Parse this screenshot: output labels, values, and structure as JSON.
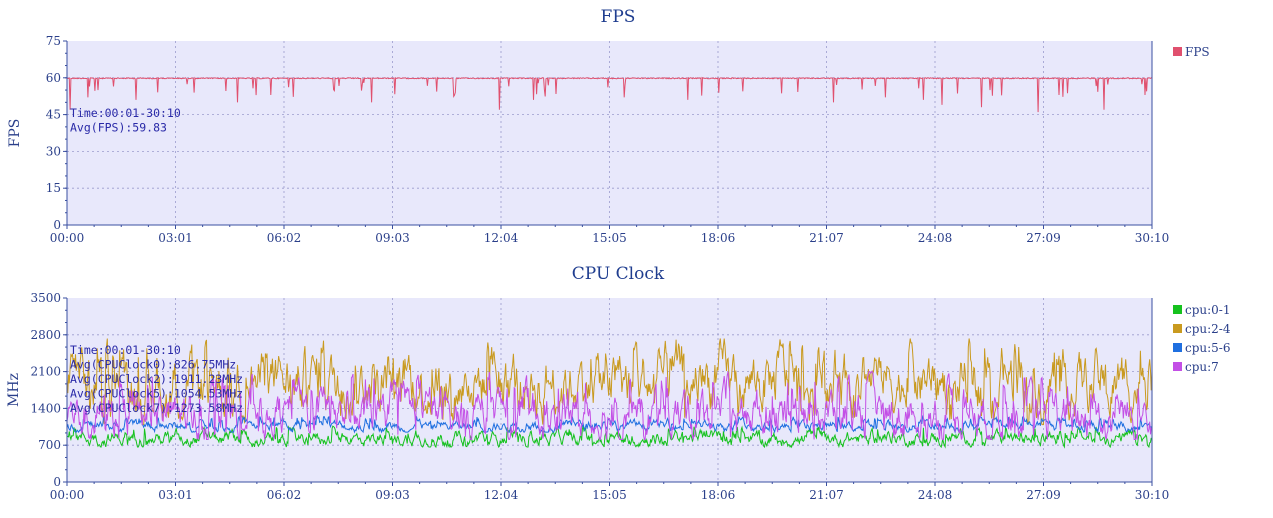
{
  "chart_data": [
    {
      "type": "line",
      "title": "FPS",
      "xlabel": "",
      "ylabel": "FPS",
      "xlim": [
        0,
        1810
      ],
      "ylim": [
        0,
        75
      ],
      "x_tick_labels": [
        "00:00",
        "03:01",
        "06:02",
        "09:03",
        "12:04",
        "15:05",
        "18:06",
        "21:07",
        "24:08",
        "27:09",
        "30:10"
      ],
      "y_tick_labels": [
        "0",
        "15",
        "30",
        "45",
        "60",
        "75"
      ],
      "y_ticks": [
        0,
        15,
        30,
        45,
        60,
        75
      ],
      "grid": true,
      "legend": "top-right",
      "annotations": [
        "Time:00:01-30:10",
        "Avg(FPS):59.83"
      ],
      "series": [
        {
          "name": "FPS",
          "color": "#e0506e",
          "baseline": 60,
          "noise": 0.8,
          "dip_rate": 0.04,
          "dip_depth": [
            2,
            8
          ],
          "big_dips": [
            [
              5,
              47
            ],
            [
              35,
              52
            ],
            [
              52,
              55
            ],
            [
              115,
              51
            ],
            [
              285,
              50
            ],
            [
              340,
              53
            ],
            [
              508,
              50
            ],
            [
              648,
              54
            ],
            [
              722,
              47
            ],
            [
              778,
              51
            ],
            [
              930,
              52
            ],
            [
              1035,
              51
            ],
            [
              1278,
              50
            ],
            [
              1365,
              52
            ],
            [
              1428,
              51
            ],
            [
              1460,
              49
            ],
            [
              1525,
              48
            ],
            [
              1540,
              55
            ],
            [
              1620,
              46
            ],
            [
              1655,
              53
            ],
            [
              1730,
              47
            ],
            [
              1798,
              53
            ]
          ]
        }
      ]
    },
    {
      "type": "line",
      "title": "CPU Clock",
      "xlabel": "",
      "ylabel": "MHz",
      "xlim": [
        0,
        1810
      ],
      "ylim": [
        0,
        3500
      ],
      "x_tick_labels": [
        "00:00",
        "03:01",
        "06:02",
        "09:03",
        "12:04",
        "15:05",
        "18:06",
        "21:07",
        "24:08",
        "27:09",
        "30:10"
      ],
      "y_tick_labels": [
        "0",
        "700",
        "1400",
        "2100",
        "2800",
        "3500"
      ],
      "y_ticks": [
        0,
        700,
        1400,
        2100,
        2800,
        3500
      ],
      "grid": true,
      "legend": "top-right",
      "annotations": [
        "Time:00:01-30:10",
        "Avg(CPUClock0):826.75MHz",
        "Avg(CPUClock2):1911.23MHz",
        "Avg(CPUClock5):1054.53MHz",
        "Avg(CPUClock7):1273.58MHz"
      ],
      "series": [
        {
          "name": "cpu:0-1",
          "color": "#16c21e",
          "avg": 826.75,
          "low": 700,
          "high": 1050
        },
        {
          "name": "cpu:2-4",
          "color": "#c99a1f",
          "avg": 1911.23,
          "low": 1150,
          "high": 2600
        },
        {
          "name": "cpu:5-6",
          "color": "#1f6fe0",
          "avg": 1054.53,
          "low": 1000,
          "high": 1250
        },
        {
          "name": "cpu:7",
          "color": "#c34fe6",
          "avg": 1273.58,
          "low": 850,
          "high": 2000
        }
      ]
    }
  ]
}
